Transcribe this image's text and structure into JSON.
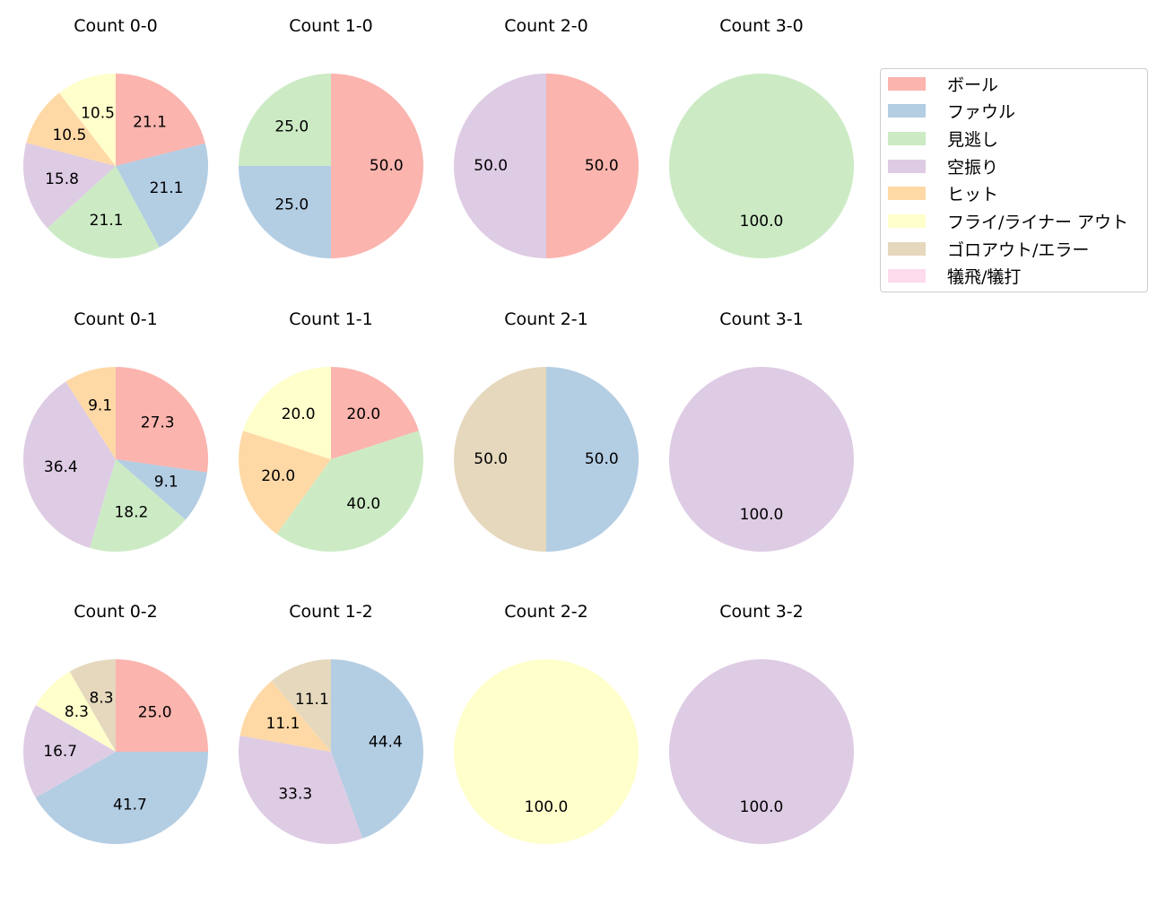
{
  "chart_data": {
    "type": "pie",
    "layout": {
      "rows": 3,
      "cols": 4,
      "start_angle": 90,
      "direction": "clockwise",
      "label_format": "%.1f"
    },
    "legend": {
      "position": "upper right",
      "entries": [
        {
          "label": "ボール",
          "color": "#fbb4ae"
        },
        {
          "label": "ファウル",
          "color": "#b3cde3"
        },
        {
          "label": "見逃し",
          "color": "#ccebc5"
        },
        {
          "label": "空振り",
          "color": "#decbe4"
        },
        {
          "label": "ヒット",
          "color": "#fed9a6"
        },
        {
          "label": "フライ/ライナー アウト",
          "color": "#ffffcc"
        },
        {
          "label": "ゴロアウト/エラー",
          "color": "#e5d8bd"
        },
        {
          "label": "犠飛/犠打",
          "color": "#fddaec"
        }
      ]
    },
    "charts": [
      {
        "title": "Count 0-0",
        "row": 0,
        "col": 0,
        "slices": [
          {
            "category": "ボール",
            "value": 21.1
          },
          {
            "category": "ファウル",
            "value": 21.1
          },
          {
            "category": "見逃し",
            "value": 21.1
          },
          {
            "category": "空振り",
            "value": 15.8
          },
          {
            "category": "ヒット",
            "value": 10.5
          },
          {
            "category": "フライ/ライナー アウト",
            "value": 10.5
          }
        ]
      },
      {
        "title": "Count 1-0",
        "row": 0,
        "col": 1,
        "slices": [
          {
            "category": "ボール",
            "value": 50.0
          },
          {
            "category": "ファウル",
            "value": 25.0
          },
          {
            "category": "見逃し",
            "value": 25.0
          }
        ]
      },
      {
        "title": "Count 2-0",
        "row": 0,
        "col": 2,
        "slices": [
          {
            "category": "ボール",
            "value": 50.0
          },
          {
            "category": "空振り",
            "value": 50.0
          }
        ]
      },
      {
        "title": "Count 3-0",
        "row": 0,
        "col": 3,
        "slices": [
          {
            "category": "見逃し",
            "value": 100.0
          }
        ]
      },
      {
        "title": "Count 0-1",
        "row": 1,
        "col": 0,
        "slices": [
          {
            "category": "ボール",
            "value": 27.3
          },
          {
            "category": "ファウル",
            "value": 9.1
          },
          {
            "category": "見逃し",
            "value": 18.2
          },
          {
            "category": "空振り",
            "value": 36.4
          },
          {
            "category": "ヒット",
            "value": 9.1
          }
        ]
      },
      {
        "title": "Count 1-1",
        "row": 1,
        "col": 1,
        "slices": [
          {
            "category": "ボール",
            "value": 20.0
          },
          {
            "category": "見逃し",
            "value": 40.0
          },
          {
            "category": "ヒット",
            "value": 20.0
          },
          {
            "category": "フライ/ライナー アウト",
            "value": 20.0
          }
        ]
      },
      {
        "title": "Count 2-1",
        "row": 1,
        "col": 2,
        "slices": [
          {
            "category": "ファウル",
            "value": 50.0
          },
          {
            "category": "ゴロアウト/エラー",
            "value": 50.0
          }
        ]
      },
      {
        "title": "Count 3-1",
        "row": 1,
        "col": 3,
        "slices": [
          {
            "category": "空振り",
            "value": 100.0
          }
        ]
      },
      {
        "title": "Count 0-2",
        "row": 2,
        "col": 0,
        "slices": [
          {
            "category": "ボール",
            "value": 25.0
          },
          {
            "category": "ファウル",
            "value": 41.7
          },
          {
            "category": "空振り",
            "value": 16.7
          },
          {
            "category": "フライ/ライナー アウト",
            "value": 8.3
          },
          {
            "category": "ゴロアウト/エラー",
            "value": 8.3
          }
        ]
      },
      {
        "title": "Count 1-2",
        "row": 2,
        "col": 1,
        "slices": [
          {
            "category": "ファウル",
            "value": 44.4
          },
          {
            "category": "空振り",
            "value": 33.3
          },
          {
            "category": "ヒット",
            "value": 11.1
          },
          {
            "category": "ゴロアウト/エラー",
            "value": 11.1
          }
        ]
      },
      {
        "title": "Count 2-2",
        "row": 2,
        "col": 2,
        "slices": [
          {
            "category": "フライ/ライナー アウト",
            "value": 100.0
          }
        ]
      },
      {
        "title": "Count 3-2",
        "row": 2,
        "col": 3,
        "slices": [
          {
            "category": "空振り",
            "value": 100.0
          }
        ]
      }
    ]
  }
}
